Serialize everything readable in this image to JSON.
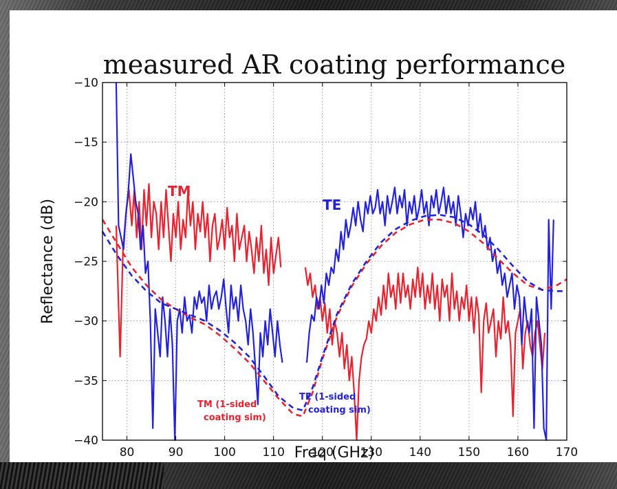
{
  "chart_data": {
    "type": "line",
    "title": "measured AR coating performance",
    "xlabel": "Freq (GHz)",
    "ylabel": "Reflectance (dB)",
    "xlim": [
      75,
      170
    ],
    "ylim": [
      -40,
      -10
    ],
    "xticks": [
      80,
      90,
      100,
      110,
      120,
      130,
      140,
      150,
      160,
      170
    ],
    "yticks": [
      -10,
      -15,
      -20,
      -25,
      -30,
      -35,
      -40
    ],
    "grid": true,
    "annotations": [
      {
        "text": "TM",
        "color": "#e8222e"
      },
      {
        "text": "TE",
        "color": "#2222dd"
      },
      {
        "text": "TM (1-sided",
        "color": "#e8222e"
      },
      {
        "text": "coating sim)",
        "color": "#e8222e"
      },
      {
        "text": "TE (1-sided",
        "color": "#2222dd"
      },
      {
        "text": "coating sim)",
        "color": "#2222dd"
      }
    ],
    "series": [
      {
        "name": "TM",
        "color": "#e8222e",
        "style": "solid",
        "segments": [
          {
            "x": [
              77.8,
              78.6,
              79.2,
              79.8,
              80.4,
              81,
              81.5,
              82,
              82.5,
              83,
              83.5,
              84,
              84.5,
              85,
              85.5,
              86,
              86.5,
              87,
              87.5,
              88,
              88.5,
              89,
              89.5,
              90,
              90.5,
              91,
              91.5,
              92,
              92.5,
              93,
              93.5,
              94,
              94.5,
              95,
              95.5,
              96,
              96.5,
              97,
              97.5,
              98,
              98.5,
              99,
              99.5,
              100,
              100.5,
              101,
              101.5,
              102,
              102.5,
              103,
              103.5,
              104,
              104.5,
              105,
              105.5,
              106,
              106.5,
              107,
              107.5,
              108,
              108.5,
              109,
              109.5,
              110,
              110.5,
              111,
              111.5
            ],
            "y": [
              -22,
              -33,
              -24,
              -21,
              -19,
              -22,
              -19,
              -23,
              -20,
              -24,
              -19,
              -22,
              -18.5,
              -23,
              -20,
              -21,
              -24,
              -20,
              -23,
              -19,
              -22,
              -25,
              -21,
              -23,
              -20,
              -24,
              -21.5,
              -23,
              -19,
              -22,
              -20,
              -24,
              -21,
              -22.5,
              -20,
              -23,
              -21,
              -25,
              -22,
              -21,
              -24,
              -23,
              -21.5,
              -24,
              -20.5,
              -23,
              -22,
              -25,
              -21,
              -24,
              -23,
              -22,
              -25,
              -22.5,
              -24,
              -26,
              -23,
              -25,
              -22,
              -26,
              -24,
              -27,
              -23,
              -26,
              -24.5,
              -23,
              -25.5
            ]
          },
          {
            "x": [
              116.5,
              117,
              117.5,
              118,
              118.5,
              119,
              119.5,
              120,
              120.5,
              121,
              121.5,
              122,
              122.5,
              123,
              123.5,
              124,
              124.5,
              125,
              125.5,
              126,
              126.5,
              127,
              127.5,
              128,
              128.5,
              129,
              129.5,
              130,
              130.5,
              131,
              131.5,
              132,
              132.5,
              133,
              133.5,
              134,
              134.5,
              135,
              135.5,
              136,
              136.5,
              137,
              137.5,
              138,
              138.5,
              139,
              139.5,
              140,
              140.5,
              141,
              141.5,
              142,
              142.5,
              143,
              143.5,
              144,
              144.5,
              145,
              145.5,
              146,
              146.5,
              147,
              147.5,
              148,
              148.5,
              149,
              149.5,
              150,
              150.5,
              151,
              151.5,
              152,
              152.5,
              153,
              153.5,
              154,
              154.5,
              155,
              155.5,
              156,
              156.5,
              157,
              157.5,
              158,
              158.5,
              159,
              159.5,
              160,
              160.5,
              161,
              161.5,
              162,
              162.5,
              163,
              163.5,
              164,
              164.5,
              165,
              165.5
            ],
            "y": [
              -25.5,
              -27,
              -26,
              -28,
              -27,
              -29,
              -28,
              -30,
              -28.5,
              -31,
              -29,
              -32,
              -30,
              -31,
              -33,
              -31,
              -34,
              -32,
              -35,
              -33,
              -36,
              -40,
              -35,
              -33,
              -32,
              -31.5,
              -30,
              -31,
              -29,
              -30,
              -28,
              -29.5,
              -27,
              -29,
              -26,
              -28,
              -27,
              -29,
              -26,
              -28.5,
              -26,
              -28,
              -27,
              -29,
              -26.5,
              -28,
              -25.5,
              -28,
              -26,
              -29,
              -27,
              -28.5,
              -26,
              -29,
              -27,
              -30,
              -26.5,
              -28,
              -27,
              -30,
              -26,
              -29,
              -27.5,
              -30,
              -28,
              -29,
              -27,
              -30,
              -28,
              -31,
              -28,
              -29.5,
              -36,
              -30,
              -28.5,
              -31,
              -30,
              -29,
              -33,
              -30,
              -31.5,
              -28,
              -31,
              -30,
              -32,
              -38,
              -31,
              -30,
              -29,
              -34,
              -31,
              -30,
              -32,
              -33,
              -31,
              -30,
              -32,
              -34,
              -31
            ]
          }
        ]
      },
      {
        "name": "TE",
        "color": "#2222dd",
        "style": "solid",
        "segments": [
          {
            "x": [
              77.8,
              78.3,
              78.8,
              79.3,
              79.8,
              80.3,
              80.8,
              81.3,
              81.8,
              82.3,
              82.8,
              83.3,
              83.8,
              84.3,
              84.8,
              85.3,
              85.8,
              86.3,
              86.8,
              87.3,
              87.8,
              88.3,
              88.8,
              89.3,
              89.8,
              90.3,
              90.8,
              91.3,
              91.8,
              92.3,
              92.8,
              93.3,
              93.8,
              94.3,
              94.8,
              95.3,
              95.8,
              96.3,
              96.8,
              97.3,
              97.8,
              98.3,
              98.8,
              99.3,
              99.8,
              100.3,
              100.8,
              101.3,
              101.8,
              102.3,
              102.8,
              103.3,
              103.8,
              104.3,
              104.8,
              105.3,
              105.8,
              106.3,
              106.8,
              107.3,
              107.8,
              108.3,
              108.8,
              109.3,
              109.8,
              110.3,
              110.8,
              111.3,
              111.8
            ],
            "y": [
              -10,
              -22,
              -23,
              -24,
              -21,
              -19,
              -16,
              -18,
              -20,
              -21,
              -24,
              -22,
              -26,
              -25,
              -30,
              -39,
              -29,
              -31,
              -33,
              -28,
              -30,
              -33,
              -29,
              -32,
              -40,
              -30,
              -29,
              -31,
              -28,
              -30,
              -29.5,
              -31,
              -28,
              -29,
              -27.5,
              -28.5,
              -28,
              -30,
              -27,
              -29,
              -28,
              -27.5,
              -29,
              -28,
              -26.5,
              -29,
              -31,
              -27,
              -29,
              -28,
              -30,
              -27,
              -29,
              -30,
              -32,
              -29,
              -31,
              -34,
              -37,
              -31,
              -33,
              -30,
              -32,
              -29,
              -31,
              -33,
              -30,
              -32,
              -33.5
            ]
          },
          {
            "x": [
              116.8,
              117.3,
              117.8,
              118.3,
              118.8,
              119.3,
              119.8,
              120.3,
              120.8,
              121.3,
              121.8,
              122.3,
              122.8,
              123.3,
              123.8,
              124.3,
              124.8,
              125.3,
              125.8,
              126.3,
              126.8,
              127.3,
              127.8,
              128.3,
              128.8,
              129.3,
              129.8,
              130.3,
              130.8,
              131.3,
              131.8,
              132.3,
              132.8,
              133.3,
              133.8,
              134.3,
              134.8,
              135.3,
              135.8,
              136.3,
              136.8,
              137.3,
              137.8,
              138.3,
              138.8,
              139.3,
              139.8,
              140.3,
              140.8,
              141.3,
              141.8,
              142.3,
              142.8,
              143.3,
              143.8,
              144.3,
              144.8,
              145.3,
              145.8,
              146.3,
              146.8,
              147.3,
              147.8,
              148.3,
              148.8,
              149.3,
              149.8,
              150.3,
              150.8,
              151.3,
              151.8,
              152.3,
              152.8,
              153.3,
              153.8,
              154.3,
              154.8,
              155.3,
              155.8,
              156.3,
              156.8,
              157.3,
              157.8,
              158.3,
              158.8,
              159.3,
              159.8,
              160.3,
              160.8,
              161.3,
              161.8,
              162.3,
              162.8,
              163.3,
              163.8,
              164.3,
              164.8,
              165.3,
              165.8,
              166.3,
              166.8,
              167.3
            ],
            "y": [
              -33.5,
              -31,
              -29.5,
              -30,
              -28,
              -29,
              -27,
              -28.5,
              -26,
              -27,
              -25.5,
              -26,
              -24,
              -25,
              -22.5,
              -24,
              -21.5,
              -23,
              -22,
              -20.5,
              -22,
              -20,
              -21.5,
              -22.5,
              -20,
              -21,
              -19.5,
              -21,
              -20.5,
              -19,
              -21,
              -20,
              -22,
              -19.5,
              -21,
              -20,
              -18.8,
              -21,
              -19.5,
              -20.5,
              -19,
              -22,
              -20,
              -21,
              -19.5,
              -21.5,
              -20.5,
              -19,
              -21,
              -20,
              -22,
              -19.5,
              -20.5,
              -19,
              -21,
              -20,
              -18.8,
              -21,
              -19.5,
              -21,
              -20,
              -22,
              -19.5,
              -21,
              -23,
              -21,
              -22,
              -20.5,
              -21.5,
              -20,
              -22.5,
              -21,
              -23,
              -22,
              -24,
              -23,
              -25,
              -24,
              -26,
              -25,
              -27,
              -26,
              -28,
              -27,
              -26,
              -29,
              -27,
              -28,
              -32,
              -28,
              -30,
              -31,
              -29,
              -39,
              -28,
              -30,
              -32,
              -39,
              -40,
              -21.5,
              -29,
              -21.5
            ]
          }
        ]
      },
      {
        "name": "TM (1-sided coating sim)",
        "color": "#e8222e",
        "style": "dashed",
        "segments": [
          {
            "x": [
              75,
              78,
              81,
              84,
              87,
              90,
              93,
              96,
              99,
              102,
              105,
              108,
              111,
              114,
              116,
              118,
              120,
              123,
              126,
              129,
              132,
              135,
              138,
              141,
              144,
              147,
              150,
              153,
              156,
              159,
              162,
              165,
              168,
              170
            ],
            "y": [
              -21.5,
              -23.5,
              -25.5,
              -27,
              -28.2,
              -29,
              -29.7,
              -30.3,
              -31.2,
              -32.3,
              -33.5,
              -35,
              -36.5,
              -37.8,
              -38,
              -36,
              -33.2,
              -29.6,
              -27.1,
              -25.2,
              -23.7,
              -22.6,
              -21.9,
              -21.5,
              -21.5,
              -21.8,
              -22.5,
              -23.5,
              -24.8,
              -26,
              -27,
              -27.4,
              -27,
              -26.5
            ]
          }
        ]
      },
      {
        "name": "TE (1-sided coating sim)",
        "color": "#2222dd",
        "style": "dashed",
        "segments": [
          {
            "x": [
              75,
              78,
              81,
              84,
              87,
              90,
              93,
              96,
              99,
              102,
              105,
              108,
              111,
              114,
              116,
              118,
              120,
              123,
              126,
              129,
              132,
              135,
              138,
              141,
              144,
              147,
              150,
              153,
              156,
              159,
              162,
              165,
              168,
              170
            ],
            "y": [
              -22.5,
              -24.5,
              -26.2,
              -27.5,
              -28.5,
              -29,
              -29.5,
              -30,
              -30.8,
              -31.8,
              -33,
              -34.6,
              -36.3,
              -37.3,
              -37.5,
              -35.6,
              -33,
              -29.4,
              -26.9,
              -25,
              -23.4,
              -22.3,
              -21.6,
              -21.2,
              -21.1,
              -21.3,
              -21.9,
              -22.8,
              -24,
              -25.4,
              -26.7,
              -27.4,
              -27.5,
              -27.5
            ]
          }
        ]
      }
    ]
  }
}
